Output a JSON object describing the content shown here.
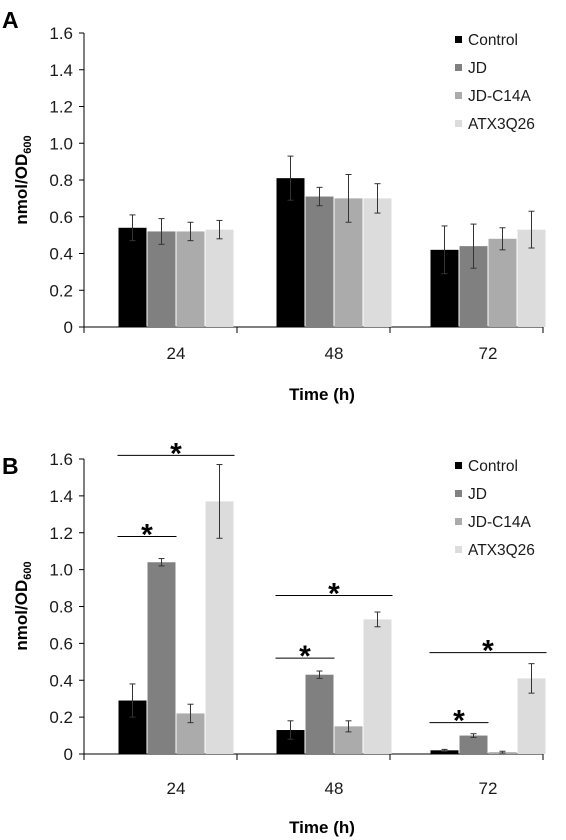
{
  "chart_data": [
    {
      "type": "bar",
      "panel_label": "A",
      "categories": [
        "24",
        "48",
        "72"
      ],
      "xlabel": "Time (h)",
      "ylabel": "nmol/OD",
      "ylabel_subscript": "600",
      "ylim": [
        0,
        1.6
      ],
      "yticks": [
        "0",
        "0.2",
        "0.4",
        "0.6",
        "0.8",
        "1.0",
        "1.2",
        "1.4",
        "1.6"
      ],
      "legend_position": "top-right",
      "series": [
        {
          "name": "Control",
          "color": "#000000",
          "values": [
            0.54,
            0.81,
            0.42
          ],
          "errors": [
            0.07,
            0.12,
            0.13
          ]
        },
        {
          "name": "JD",
          "color": "#808080",
          "values": [
            0.52,
            0.71,
            0.44
          ],
          "errors": [
            0.07,
            0.05,
            0.12
          ]
        },
        {
          "name": "JD-C14A",
          "color": "#ababab",
          "values": [
            0.52,
            0.7,
            0.48
          ],
          "errors": [
            0.05,
            0.13,
            0.06
          ]
        },
        {
          "name": "ATX3Q26",
          "color": "#dcdcdc",
          "values": [
            0.53,
            0.7,
            0.53
          ],
          "errors": [
            0.05,
            0.08,
            0.1
          ]
        }
      ],
      "significance": []
    },
    {
      "type": "bar",
      "panel_label": "B",
      "categories": [
        "24",
        "48",
        "72"
      ],
      "xlabel": "Time (h)",
      "ylabel": "nmol/OD",
      "ylabel_subscript": "600",
      "ylim": [
        0,
        1.6
      ],
      "yticks": [
        "0",
        "0.2",
        "0.4",
        "0.6",
        "0.8",
        "1.0",
        "1.2",
        "1.4",
        "1.6"
      ],
      "legend_position": "top-right",
      "series": [
        {
          "name": "Control",
          "color": "#000000",
          "values": [
            0.29,
            0.13,
            0.02
          ],
          "errors": [
            0.09,
            0.05,
            0.005
          ]
        },
        {
          "name": "JD",
          "color": "#808080",
          "values": [
            1.04,
            0.43,
            0.1
          ],
          "errors": [
            0.02,
            0.02,
            0.01
          ]
        },
        {
          "name": "JD-C14A",
          "color": "#ababab",
          "values": [
            0.22,
            0.15,
            0.01
          ],
          "errors": [
            0.05,
            0.03,
            0.005
          ]
        },
        {
          "name": "ATX3Q26",
          "color": "#dcdcdc",
          "values": [
            1.37,
            0.73,
            0.41
          ],
          "errors": [
            0.2,
            0.04,
            0.08
          ]
        }
      ],
      "significance": [
        {
          "category": 0,
          "from_series": 0,
          "to_series": 1,
          "line_y": 1.18,
          "label": "*"
        },
        {
          "category": 0,
          "from_series": 0,
          "to_series": 3,
          "line_y": 1.62,
          "label": "*"
        },
        {
          "category": 1,
          "from_series": 0,
          "to_series": 1,
          "line_y": 0.52,
          "label": "*"
        },
        {
          "category": 1,
          "from_series": 0,
          "to_series": 3,
          "line_y": 0.86,
          "label": "*"
        },
        {
          "category": 2,
          "from_series": 0,
          "to_series": 1,
          "line_y": 0.17,
          "label": "*"
        },
        {
          "category": 2,
          "from_series": 0,
          "to_series": 3,
          "line_y": 0.55,
          "label": "*"
        }
      ]
    }
  ]
}
